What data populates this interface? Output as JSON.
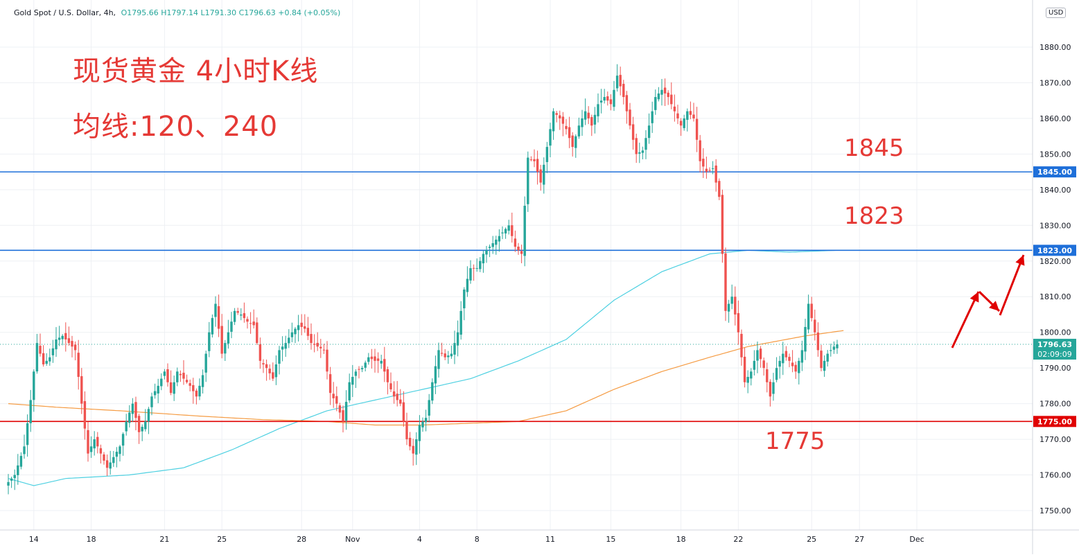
{
  "legend": {
    "symbol": "Gold Spot / U.S. Dollar, 4h,",
    "open": "O1795.66",
    "high": "H1797.14",
    "low": "L1791.30",
    "close": "C1796.63",
    "change": "+0.84 (+0.05%)"
  },
  "overlay": {
    "title": "现货黄金 4小时K线",
    "subtitle": "均线:120、240",
    "level_1845": "1845",
    "level_1823": "1823",
    "level_1775": "1775"
  },
  "axis": {
    "currency": "USD",
    "countdown": "02:09:09",
    "last_price_label": "1796.63"
  },
  "colors": {
    "up": "#26a69a",
    "down": "#ef5350",
    "ma120": "#4dd0e1",
    "ma240": "#f59b42",
    "resistance": "#1e6fd9",
    "support": "#e00000",
    "annotation": "#e53935",
    "arrow": "#e00000"
  },
  "chart_data": {
    "type": "candlestick",
    "title": "Gold Spot / U.S. Dollar, 4h,",
    "ylim": [
      1743,
      1890
    ],
    "y_ticks": [
      1750,
      1760,
      1770,
      1780,
      1790,
      1800,
      1810,
      1820,
      1830,
      1840,
      1850,
      1860,
      1870,
      1880
    ],
    "x_tick_labels": [
      "14",
      "18",
      "21",
      "25",
      "28",
      "Nov",
      "4",
      "8",
      "11",
      "15",
      "18",
      "22",
      "25",
      "27",
      "Dec"
    ],
    "x_tick_index": [
      8,
      26,
      49,
      67,
      92,
      108,
      129,
      147,
      170,
      189,
      211,
      229,
      252,
      267,
      285
    ],
    "grid": true,
    "last_price": 1796.63,
    "horizontal_lines": [
      {
        "price": 1845,
        "label": "1845.00",
        "color": "#1e6fd9"
      },
      {
        "price": 1823,
        "label": "1823.00",
        "color": "#1e6fd9"
      },
      {
        "price": 1775,
        "label": "1775.00",
        "color": "#e00000"
      }
    ],
    "close_anchors": [
      [
        0,
        1758
      ],
      [
        2,
        1760
      ],
      [
        5,
        1768
      ],
      [
        7,
        1781
      ],
      [
        9,
        1797
      ],
      [
        11,
        1791
      ],
      [
        13,
        1793
      ],
      [
        15,
        1798
      ],
      [
        17,
        1799
      ],
      [
        19,
        1797
      ],
      [
        21,
        1795
      ],
      [
        23,
        1780
      ],
      [
        25,
        1766
      ],
      [
        27,
        1770
      ],
      [
        29,
        1766
      ],
      [
        31,
        1762
      ],
      [
        33,
        1765
      ],
      [
        35,
        1768
      ],
      [
        37,
        1775
      ],
      [
        39,
        1780
      ],
      [
        41,
        1772
      ],
      [
        43,
        1775
      ],
      [
        45,
        1782
      ],
      [
        47,
        1785
      ],
      [
        49,
        1789
      ],
      [
        51,
        1783
      ],
      [
        53,
        1789
      ],
      [
        55,
        1787
      ],
      [
        57,
        1785
      ],
      [
        59,
        1782
      ],
      [
        61,
        1788
      ],
      [
        63,
        1800
      ],
      [
        65,
        1808
      ],
      [
        67,
        1794
      ],
      [
        69,
        1800
      ],
      [
        71,
        1806
      ],
      [
        73,
        1805
      ],
      [
        75,
        1803
      ],
      [
        77,
        1802
      ],
      [
        79,
        1792
      ],
      [
        81,
        1790
      ],
      [
        83,
        1787
      ],
      [
        85,
        1795
      ],
      [
        87,
        1797
      ],
      [
        89,
        1800
      ],
      [
        91,
        1802
      ],
      [
        93,
        1801
      ],
      [
        95,
        1797
      ],
      [
        97,
        1796
      ],
      [
        99,
        1795
      ],
      [
        101,
        1783
      ],
      [
        103,
        1780
      ],
      [
        105,
        1775
      ],
      [
        107,
        1786
      ],
      [
        109,
        1789
      ],
      [
        111,
        1790
      ],
      [
        113,
        1793
      ],
      [
        115,
        1792
      ],
      [
        117,
        1792
      ],
      [
        119,
        1786
      ],
      [
        121,
        1782
      ],
      [
        123,
        1780
      ],
      [
        125,
        1770
      ],
      [
        127,
        1766
      ],
      [
        129,
        1774
      ],
      [
        131,
        1776
      ],
      [
        133,
        1786
      ],
      [
        135,
        1795
      ],
      [
        137,
        1793
      ],
      [
        139,
        1794
      ],
      [
        141,
        1800
      ],
      [
        143,
        1812
      ],
      [
        145,
        1818
      ],
      [
        147,
        1818
      ],
      [
        149,
        1822
      ],
      [
        151,
        1824
      ],
      [
        153,
        1826
      ],
      [
        155,
        1828
      ],
      [
        157,
        1830
      ],
      [
        159,
        1824
      ],
      [
        161,
        1822
      ],
      [
        163,
        1849
      ],
      [
        165,
        1848
      ],
      [
        167,
        1842
      ],
      [
        169,
        1852
      ],
      [
        171,
        1862
      ],
      [
        173,
        1860
      ],
      [
        175,
        1857
      ],
      [
        177,
        1852
      ],
      [
        179,
        1858
      ],
      [
        181,
        1862
      ],
      [
        183,
        1858
      ],
      [
        185,
        1864
      ],
      [
        187,
        1866
      ],
      [
        189,
        1864
      ],
      [
        191,
        1872
      ],
      [
        193,
        1866
      ],
      [
        195,
        1858
      ],
      [
        197,
        1850
      ],
      [
        199,
        1851
      ],
      [
        201,
        1858
      ],
      [
        203,
        1866
      ],
      [
        205,
        1868
      ],
      [
        207,
        1866
      ],
      [
        209,
        1862
      ],
      [
        211,
        1858
      ],
      [
        213,
        1862
      ],
      [
        215,
        1860
      ],
      [
        217,
        1848
      ],
      [
        219,
        1845
      ],
      [
        221,
        1846
      ],
      [
        223,
        1838
      ],
      [
        225,
        1806
      ],
      [
        227,
        1810
      ],
      [
        229,
        1800
      ],
      [
        231,
        1786
      ],
      [
        233,
        1789
      ],
      [
        235,
        1795
      ],
      [
        237,
        1790
      ],
      [
        239,
        1782
      ],
      [
        241,
        1790
      ],
      [
        243,
        1794
      ],
      [
        245,
        1792
      ],
      [
        247,
        1789
      ],
      [
        249,
        1795
      ],
      [
        251,
        1808
      ],
      [
        253,
        1800
      ],
      [
        255,
        1790
      ],
      [
        257,
        1794
      ],
      [
        259,
        1796
      ],
      [
        260,
        1796.63
      ]
    ],
    "ma120_anchors": [
      [
        0,
        1759
      ],
      [
        8,
        1757
      ],
      [
        18,
        1759
      ],
      [
        38,
        1760
      ],
      [
        55,
        1762
      ],
      [
        70,
        1767
      ],
      [
        85,
        1773
      ],
      [
        100,
        1778
      ],
      [
        115,
        1781
      ],
      [
        130,
        1784
      ],
      [
        145,
        1787
      ],
      [
        160,
        1792
      ],
      [
        175,
        1798
      ],
      [
        190,
        1809
      ],
      [
        205,
        1817
      ],
      [
        220,
        1822
      ],
      [
        232,
        1823
      ],
      [
        245,
        1822.5
      ],
      [
        260,
        1823
      ]
    ],
    "ma240_anchors": [
      [
        0,
        1780
      ],
      [
        15,
        1779
      ],
      [
        35,
        1778
      ],
      [
        60,
        1776.5
      ],
      [
        80,
        1775.5
      ],
      [
        100,
        1775
      ],
      [
        115,
        1774
      ],
      [
        130,
        1774
      ],
      [
        145,
        1774.5
      ],
      [
        160,
        1775
      ],
      [
        175,
        1778
      ],
      [
        190,
        1784
      ],
      [
        205,
        1789
      ],
      [
        220,
        1793
      ],
      [
        232,
        1796
      ],
      [
        250,
        1799
      ],
      [
        262,
        1800.5
      ]
    ]
  }
}
